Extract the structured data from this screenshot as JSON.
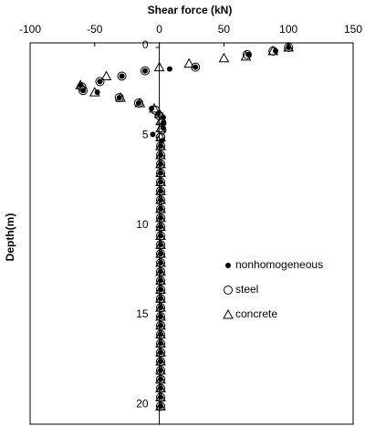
{
  "chart_data": {
    "type": "scatter",
    "x_label": "Shear force (kN)",
    "y_label": "Depth(m)",
    "xlim": [
      -100,
      150
    ],
    "xticks": [
      -100,
      -50,
      0,
      50,
      100,
      150
    ],
    "ylim": [
      0,
      21
    ],
    "yticks": [
      0,
      5,
      10,
      15,
      20
    ],
    "y_inverted": true,
    "x_axis_position": "top",
    "legend": "right",
    "series": [
      {
        "name": "nonhomogeneous",
        "marker": "dot",
        "color": "#000000",
        "x": [
          100,
          90,
          69,
          28,
          8,
          -11,
          -29,
          -46,
          -61,
          -59,
          -48,
          -31,
          -16,
          -6,
          -1,
          3,
          3,
          3,
          -5,
          2,
          1,
          1,
          1,
          1,
          1,
          1,
          1,
          1,
          1,
          1,
          1,
          1,
          1,
          1,
          1,
          1,
          1,
          1,
          1,
          1,
          1,
          1,
          1,
          1,
          1,
          1,
          1,
          1,
          1,
          1
        ],
        "y": [
          0,
          0.2,
          0.4,
          1.1,
          1.2,
          1.3,
          1.6,
          1.9,
          2.1,
          2.4,
          2.5,
          2.8,
          3.1,
          3.4,
          3.7,
          3.9,
          4.2,
          4.5,
          4.85,
          5.2,
          5.5,
          6,
          6.5,
          7,
          7.5,
          8,
          8.5,
          9,
          9.5,
          10,
          10.5,
          11,
          11.5,
          12,
          12.5,
          13,
          13.5,
          14,
          14.5,
          15,
          15.5,
          16,
          16.5,
          17,
          17.5,
          18,
          18.5,
          19,
          19.5,
          20
        ]
      },
      {
        "name": "steel",
        "marker": "circle",
        "color": "#000000",
        "x": [
          100,
          88,
          68,
          28,
          -11,
          -29,
          -46,
          -60,
          -59,
          -31,
          -16,
          -3,
          0,
          2,
          2,
          1,
          1,
          1,
          1,
          1,
          1,
          1,
          1,
          1,
          1,
          1,
          1,
          1,
          1,
          1,
          1,
          1,
          1,
          1,
          1,
          1,
          1,
          1,
          1,
          1,
          1,
          1,
          1,
          1,
          1,
          1
        ],
        "y": [
          0,
          0.2,
          0.4,
          1.1,
          1.3,
          1.6,
          1.9,
          2.2,
          2.4,
          2.8,
          3.1,
          3.5,
          3.8,
          4.2,
          4.6,
          5,
          5.5,
          6,
          6.5,
          7,
          7.5,
          8,
          8.5,
          9,
          9.5,
          10,
          10.5,
          11,
          11.5,
          12,
          12.5,
          13,
          13.5,
          14,
          14.5,
          15,
          15.5,
          16,
          16.5,
          17,
          17.5,
          18,
          18.5,
          19,
          19.5,
          20
        ]
      },
      {
        "name": "concrete",
        "marker": "triangle",
        "color": "#000000",
        "x": [
          100,
          88,
          67,
          50,
          23,
          0,
          -41,
          -61,
          -50,
          -30,
          -15,
          -4,
          0,
          1,
          1,
          1,
          1,
          1,
          1,
          1,
          1,
          1,
          1,
          1,
          1,
          1,
          1,
          1,
          1,
          1,
          1,
          1,
          1,
          1,
          1,
          1,
          1,
          1,
          1,
          1,
          1,
          1,
          1,
          1,
          1,
          1
        ],
        "y": [
          0,
          0.2,
          0.5,
          0.6,
          0.9,
          1.1,
          1.6,
          2.1,
          2.5,
          2.8,
          3.1,
          3.4,
          3.7,
          4.1,
          4.5,
          5,
          5.5,
          6,
          6.5,
          7,
          7.5,
          8,
          8.5,
          9,
          9.5,
          10,
          10.5,
          11,
          11.5,
          12,
          12.5,
          13,
          13.5,
          14,
          14.5,
          15,
          15.5,
          16,
          16.5,
          17,
          17.5,
          18,
          18.5,
          19,
          19.5,
          20
        ]
      }
    ]
  }
}
